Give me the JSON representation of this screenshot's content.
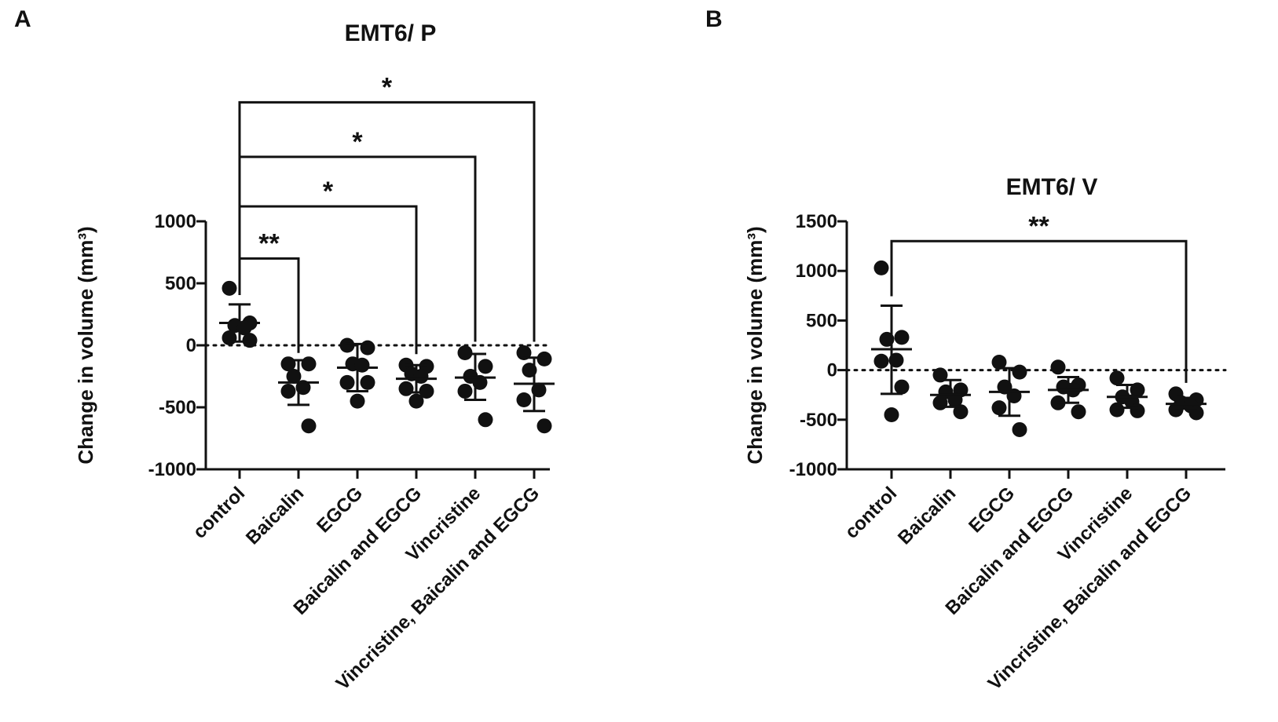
{
  "chart_data": [
    {
      "panel": "A",
      "type": "scatter",
      "title": "EMT6/ P",
      "ylabel": "Change in volume (mm³)",
      "ylim": [
        -1000,
        1000
      ],
      "yticks": [
        1000,
        500,
        0,
        -500,
        -1000
      ],
      "zero_line": "dotted",
      "categories": [
        "control",
        "Baicalin",
        "EGCG",
        "Baicalin and EGCG",
        "Vincristine",
        "Vincristine, Baicalin and EGCG"
      ],
      "points": [
        [
          460,
          180,
          160,
          140,
          60,
          40
        ],
        [
          -150,
          -150,
          -250,
          -340,
          -370,
          -650
        ],
        [
          0,
          -20,
          -150,
          -160,
          -300,
          -300,
          -450
        ],
        [
          -160,
          -170,
          -230,
          -250,
          -350,
          -370,
          -450
        ],
        [
          -60,
          -170,
          -250,
          -300,
          -370,
          -600
        ],
        [
          -60,
          -110,
          -200,
          -360,
          -440,
          -650
        ]
      ],
      "mean": [
        180,
        -300,
        -180,
        -270,
        -260,
        -310
      ],
      "error": [
        [
          30,
          330
        ],
        [
          -480,
          -120
        ],
        [
          -370,
          10
        ],
        [
          -380,
          -160
        ],
        [
          -440,
          -70
        ],
        [
          -530,
          -100
        ]
      ],
      "significance": [
        {
          "from": 0,
          "to": 1,
          "label": "**",
          "level": 700
        },
        {
          "from": 0,
          "to": 3,
          "label": "*",
          "level": 1120
        },
        {
          "from": 0,
          "to": 4,
          "label": "*",
          "level": 1520
        },
        {
          "from": 0,
          "to": 5,
          "label": "*",
          "level": 1960
        }
      ]
    },
    {
      "panel": "B",
      "type": "scatter",
      "title": "EMT6/ V",
      "ylabel": "Change in volume (mm³)",
      "ylim": [
        -1000,
        1500
      ],
      "yticks": [
        1500,
        1000,
        500,
        0,
        -500,
        -1000
      ],
      "zero_line": "dotted",
      "categories": [
        "control",
        "Baicalin",
        "EGCG",
        "Baicalin and EGCG",
        "Vincristine",
        "Vincristine, Baicalin and EGCG"
      ],
      "points": [
        [
          1030,
          330,
          310,
          100,
          90,
          -170,
          -450
        ],
        [
          -50,
          -200,
          -220,
          -300,
          -330,
          -420
        ],
        [
          80,
          -20,
          -170,
          -260,
          -380,
          -600
        ],
        [
          30,
          -150,
          -170,
          -200,
          -330,
          -420
        ],
        [
          -80,
          -200,
          -270,
          -320,
          -400,
          -410
        ],
        [
          -240,
          -300,
          -330,
          -360,
          -400,
          -430
        ]
      ],
      "mean": [
        210,
        -250,
        -220,
        -200,
        -270,
        -340
      ],
      "error": [
        [
          -240,
          650
        ],
        [
          -370,
          -100
        ],
        [
          -460,
          20
        ],
        [
          -330,
          -70
        ],
        [
          -380,
          -150
        ],
        [
          -380,
          -280
        ]
      ],
      "significance": [
        {
          "from": 0,
          "to": 5,
          "label": "**",
          "level": 1300
        }
      ]
    }
  ]
}
